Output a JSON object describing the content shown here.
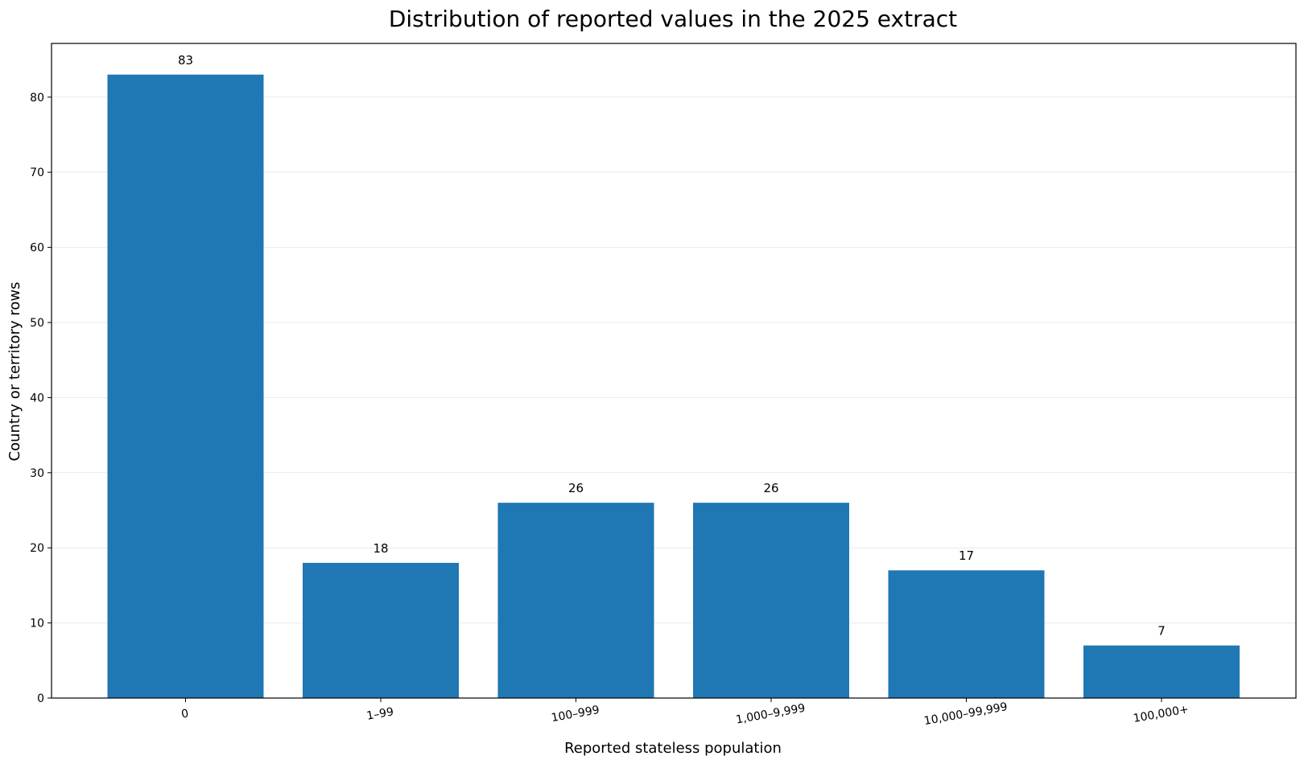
{
  "chart_data": {
    "type": "bar",
    "title": "Distribution of reported values in the 2025 extract",
    "xlabel": "Reported stateless population",
    "ylabel": "Country or territory rows",
    "categories": [
      "0",
      "1–99",
      "100–999",
      "1,000–9,999",
      "10,000–99,999",
      "100,000+"
    ],
    "values": [
      83,
      18,
      26,
      26,
      17,
      7
    ],
    "ylim": [
      0,
      87.15
    ],
    "yticks": [
      0,
      10,
      20,
      30,
      40,
      50,
      60,
      70,
      80
    ],
    "grid": "horizontal",
    "bar_color": "#1f77b4"
  }
}
